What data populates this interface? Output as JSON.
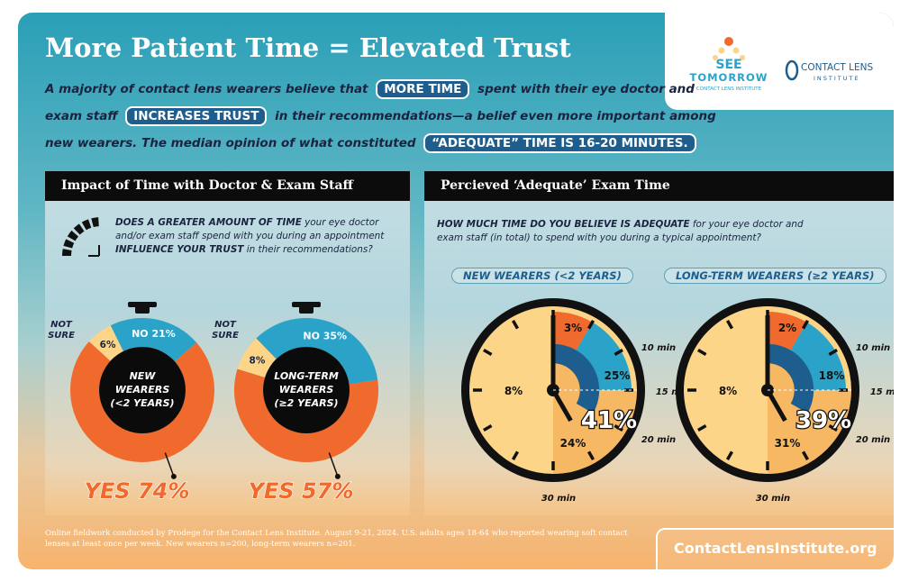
{
  "title": "More Patient Time = Elevated Trust",
  "intro": {
    "line1_pre": "A majority of contact lens wearers believe that",
    "line1_pill": "MORE TIME",
    "line1_post": "spent with their eye doctor and",
    "line2_pre": "exam staff",
    "line2_pill": "INCREASES TRUST",
    "line2_post": "in their recommendations—a belief even more important among",
    "line3_pre": "new wearers. The median opinion of what constituted",
    "line3_pill": "“ADEQUATE” TIME IS 16-20 MINUTES."
  },
  "logos": {
    "see_tomorrow_1": "SEE",
    "see_tomorrow_2": "TOMORROW",
    "see_tomorrow_3": "CONTACT LENS INSTITUTE",
    "cli_1": "CONTACT LENS",
    "cli_2": "INSTITUTE"
  },
  "panel_left": {
    "header": "Impact of Time with Doctor & Exam Staff",
    "question_bold1": "DOES A GREATER AMOUNT OF TIME",
    "question_rest1": " your eye doctor",
    "question_line2": "and/or exam staff spend with you during an appointment",
    "question_bold3": "INFLUENCE YOUR TRUST",
    "question_rest3": " in their recommendations?"
  },
  "panel_right": {
    "header": "Percieved ‘Adequate’ Exam Time",
    "question_bold": "HOW MUCH TIME DO YOU BELIEVE IS ADEQUATE",
    "question_rest": " for your eye doctor and",
    "question_line2": "exam staff (in total) to spend with you during a typical appointment?",
    "label_new": "NEW WEARERS (<2 YEARS)",
    "label_long": "LONG-TERM WEARERS (≥2 YEARS)"
  },
  "footer": {
    "note": "Online fieldwork conducted by Prodege for the Contact Lens Institute. August 9-21, 2024. U.S. adults ages 18-64 who reported wearing soft contact lenses at least once per week. New wearers n=200, long-term wearers n=201.",
    "url": "ContactLensInstitute.org"
  },
  "colors": {
    "orange": "#ef6a2c",
    "blue": "#2ba3c8",
    "cream": "#fdd589",
    "dark_blue": "#1d5e8e",
    "navy": "#1a2440"
  },
  "chart_data": [
    {
      "type": "pie",
      "title": "",
      "center_label": [
        "NEW",
        "WEARERS",
        "(<2 YEARS)"
      ],
      "slices": [
        {
          "name": "YES",
          "value": 74,
          "label": "YES 74%"
        },
        {
          "name": "NO",
          "value": 21,
          "label": "NO 21%"
        },
        {
          "name": "NOT SURE",
          "value": 6,
          "label": "6%"
        }
      ],
      "not_sure_label": [
        "NOT",
        "SURE"
      ]
    },
    {
      "type": "pie",
      "title": "",
      "center_label": [
        "LONG-TERM",
        "WEARERS",
        "(≥2 YEARS)"
      ],
      "slices": [
        {
          "name": "YES",
          "value": 57,
          "label": "YES 57%"
        },
        {
          "name": "NO",
          "value": 35,
          "label": "NO 35%"
        },
        {
          "name": "NOT SURE",
          "value": 8,
          "label": "8%"
        }
      ],
      "not_sure_label": [
        "NOT",
        "SURE"
      ]
    },
    {
      "type": "pie",
      "title": "NEW WEARERS (<2 YEARS)",
      "tick_labels": [
        "10 min",
        "15 min",
        "20 min",
        "30 min"
      ],
      "slices": [
        {
          "range": "up to 10 min",
          "value": 3,
          "label": "3%"
        },
        {
          "range": "11-15 min",
          "value": 25,
          "label": "25%"
        },
        {
          "range": "16-20 min",
          "value": 41,
          "label": "41%"
        },
        {
          "range": "21-30 min",
          "value": 24,
          "label": "24%"
        },
        {
          "range": "30+ min",
          "value": 8,
          "label": "8%"
        }
      ]
    },
    {
      "type": "pie",
      "title": "LONG-TERM WEARERS (≥2 YEARS)",
      "tick_labels": [
        "10 min",
        "15 min",
        "20 min",
        "30 min"
      ],
      "slices": [
        {
          "range": "up to 10 min",
          "value": 2,
          "label": "2%"
        },
        {
          "range": "11-15 min",
          "value": 18,
          "label": "18%"
        },
        {
          "range": "16-20 min",
          "value": 39,
          "label": "39%"
        },
        {
          "range": "21-30 min",
          "value": 31,
          "label": "31%"
        },
        {
          "range": "30+ min",
          "value": 8,
          "label": "8%"
        }
      ]
    }
  ]
}
